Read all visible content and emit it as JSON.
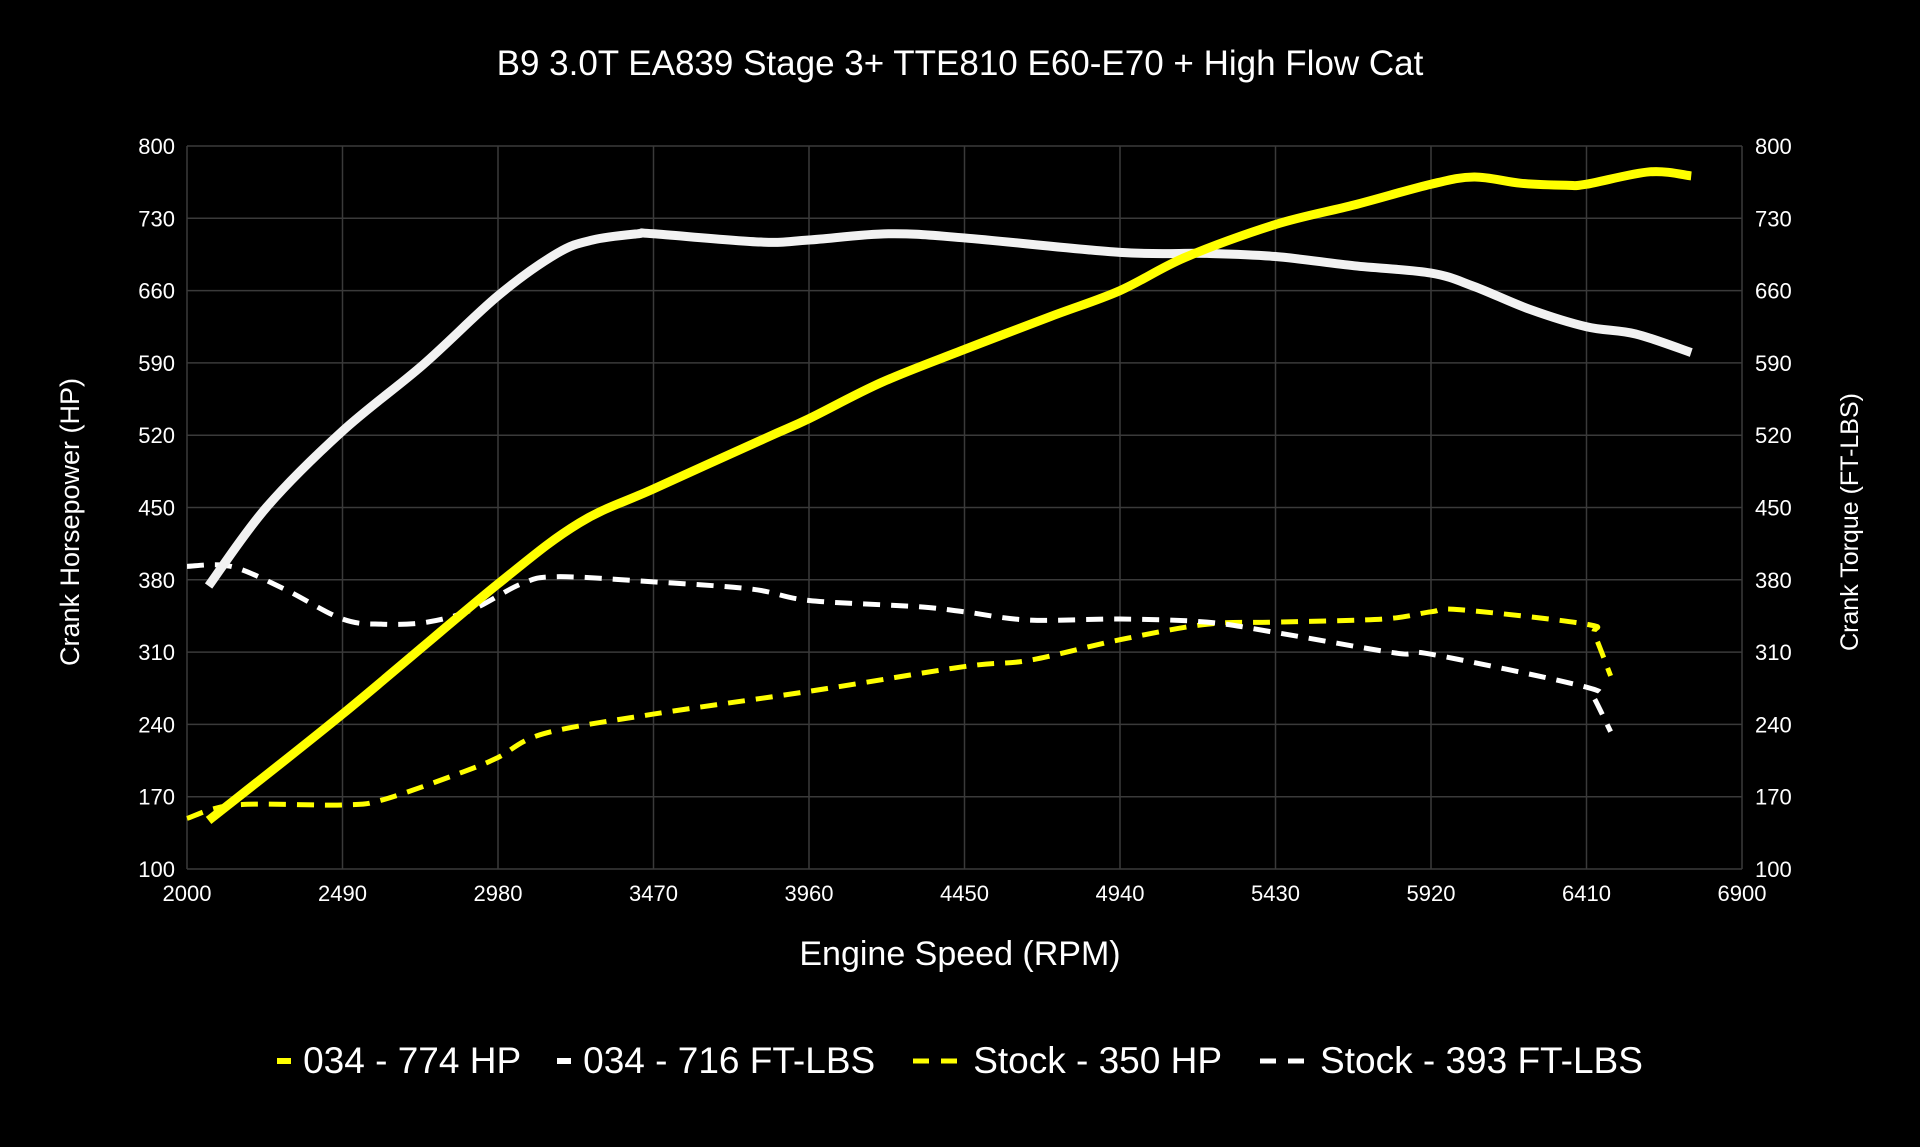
{
  "chart_data": {
    "type": "line",
    "title": "B9 3.0T EA839 Stage 3+ TTE810 E60-E70 + High Flow Cat",
    "xlabel": "Engine Speed (RPM)",
    "ylabel": "Crank Horsepower (HP)",
    "y2label": "Crank Torque (FT-LBS)",
    "xlim": [
      2000,
      6900
    ],
    "ylim": [
      100,
      800
    ],
    "y2lim": [
      100,
      800
    ],
    "xticks": [
      "2000",
      "2490",
      "2980",
      "3470",
      "3960",
      "4450",
      "4940",
      "5430",
      "5920",
      "6410",
      "6900"
    ],
    "yticks": [
      "100",
      "170",
      "240",
      "310",
      "380",
      "450",
      "520",
      "590",
      "660",
      "730",
      "800"
    ],
    "grid": true,
    "legend_position": "bottom",
    "series": [
      {
        "name": "034 - 774 HP",
        "color": "#ffff00",
        "style": "solid",
        "axis": "left",
        "x": [
          2068,
          2490,
          2980,
          3236,
          3470,
          3822,
          3960,
          4188,
          4450,
          4722,
          4940,
          5144,
          5430,
          5679,
          5920,
          6056,
          6201,
          6346,
          6410,
          6609,
          6740
        ],
        "y": [
          147,
          250,
          376,
          435,
          468,
          517,
          536,
          571,
          603,
          635,
          660,
          692,
          724,
          743,
          763,
          770,
          764,
          762,
          763,
          775,
          771
        ]
      },
      {
        "name": "034 - 716 FT-LBS",
        "color": "#f2f2f2",
        "style": "solid",
        "axis": "right",
        "x": [
          2068,
          2250,
          2490,
          2743,
          2980,
          3166,
          3278,
          3420,
          3470,
          3808,
          3960,
          4210,
          4450,
          4940,
          5214,
          5430,
          5679,
          5920,
          6056,
          6230,
          6410,
          6565,
          6740
        ],
        "y": [
          374,
          450,
          524,
          588,
          655,
          696,
          709,
          715,
          715,
          707,
          709,
          715,
          711,
          697,
          696,
          693,
          684,
          677,
          664,
          642,
          625,
          618,
          600
        ]
      },
      {
        "name": "Stock - 350 HP",
        "color": "#ffff00",
        "style": "dashed",
        "axis": "left",
        "x": [
          2000,
          2152,
          2490,
          2617,
          2870,
          2980,
          3124,
          3470,
          3960,
          4450,
          4653,
          4940,
          5214,
          5430,
          5768,
          5920,
          6013,
          6410,
          6435,
          6486
        ],
        "y": [
          149,
          162,
          162,
          167,
          194,
          208,
          231,
          250,
          272,
          296,
          302,
          322,
          337,
          339,
          342,
          349,
          351,
          337,
          327,
          287
        ]
      },
      {
        "name": "Stock - 393 FT-LBS",
        "color": "#ffffff",
        "style": "dashed",
        "axis": "right",
        "x": [
          2000,
          2138,
          2307,
          2490,
          2617,
          2757,
          2898,
          3053,
          3166,
          3470,
          3779,
          3960,
          4301,
          4450,
          4653,
          4940,
          5214,
          5430,
          5811,
          5920,
          6410,
          6435,
          6486
        ],
        "y": [
          393,
          393,
          371,
          342,
          337,
          339,
          351,
          376,
          383,
          378,
          371,
          360,
          354,
          349,
          341,
          342,
          339,
          329,
          309,
          308,
          276,
          265,
          233
        ]
      }
    ]
  }
}
